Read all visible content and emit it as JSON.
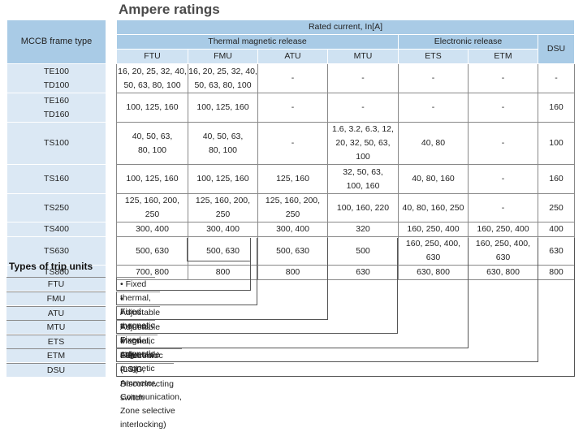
{
  "title": "Ampere ratings",
  "header": {
    "frame_type": "MCCB frame type",
    "rated_current": "Rated current, In[A]",
    "thermal_group": "Thermal magnetic release",
    "electronic_group": "Electronic release",
    "dsu": "DSU",
    "columns": [
      "FTU",
      "FMU",
      "ATU",
      "MTU",
      "ETS",
      "ETM"
    ]
  },
  "rows": [
    {
      "frames": [
        "TE100",
        "TD100"
      ],
      "ftu": [
        "16, 20, 25, 32, 40,",
        "50, 63, 80, 100"
      ],
      "fmu": [
        "16, 20, 25, 32, 40,",
        "50, 63, 80, 100"
      ],
      "atu": "-",
      "mtu": "-",
      "ets": "-",
      "etm": "-",
      "dsu": "-"
    },
    {
      "frames": [
        "TE160",
        "TD160"
      ],
      "ftu": "100, 125, 160",
      "fmu": "100, 125, 160",
      "atu": "-",
      "mtu": "-",
      "ets": "-",
      "etm": "-",
      "dsu": "160"
    },
    {
      "frames": [
        "TS100"
      ],
      "ftu": [
        "40, 50, 63,",
        "80, 100"
      ],
      "fmu": [
        "40, 50, 63,",
        "80, 100"
      ],
      "atu": "-",
      "mtu": [
        "1.6, 3.2, 6.3, 12,",
        "20, 32, 50, 63, 100"
      ],
      "ets": "40, 80",
      "etm": "-",
      "dsu": "100"
    },
    {
      "frames": [
        "TS160"
      ],
      "ftu": "100, 125, 160",
      "fmu": "100, 125, 160",
      "atu": "125, 160",
      "mtu": [
        "32, 50, 63,",
        "100, 160"
      ],
      "ets": "40, 80, 160",
      "etm": "-",
      "dsu": "160"
    },
    {
      "frames": [
        "TS250"
      ],
      "ftu": "125, 160, 200, 250",
      "fmu": "125, 160, 200, 250",
      "atu": "125, 160, 200, 250",
      "mtu": "100, 160, 220",
      "ets": "40, 80, 160, 250",
      "etm": "-",
      "dsu": "250"
    },
    {
      "frames": [
        "TS400"
      ],
      "ftu": "300, 400",
      "fmu": "300, 400",
      "atu": "300, 400",
      "mtu": "320",
      "ets": "160, 250, 400",
      "etm": "160, 250, 400",
      "dsu": "400"
    },
    {
      "frames": [
        "TS630"
      ],
      "ftu": "500, 630",
      "fmu": "500, 630",
      "atu": "500, 630",
      "mtu": "500",
      "ets": "160, 250, 400, 630",
      "etm": "160, 250, 400, 630",
      "dsu": "630"
    },
    {
      "frames": [
        "TS800"
      ],
      "ftu": "700, 800",
      "fmu": "800",
      "atu": "800",
      "mtu": "630",
      "ets": "630, 800",
      "etm": "630, 800",
      "dsu": "800"
    }
  ],
  "trip_units": {
    "title": "Types of trip units",
    "items": [
      {
        "code": "FTU",
        "desc": "• Fixed thermal, Fixed magnetic"
      },
      {
        "code": "FMU",
        "desc": "• Adjustable thermal, Fixed magnetic"
      },
      {
        "code": "ATU",
        "desc": "• Adjustable thermal, Adjustable magnetic"
      },
      {
        "code": "MTU",
        "desc": "• Magnetic only"
      },
      {
        "code": "ETS",
        "desc": "• Electronic (LSI)"
      },
      {
        "code": "ETM",
        "desc": "• Electronic (LSIG, Ammeter, Communication, Zone selective interlocking)"
      },
      {
        "code": "DSU",
        "desc": "• Disconnecting switch"
      }
    ]
  }
}
